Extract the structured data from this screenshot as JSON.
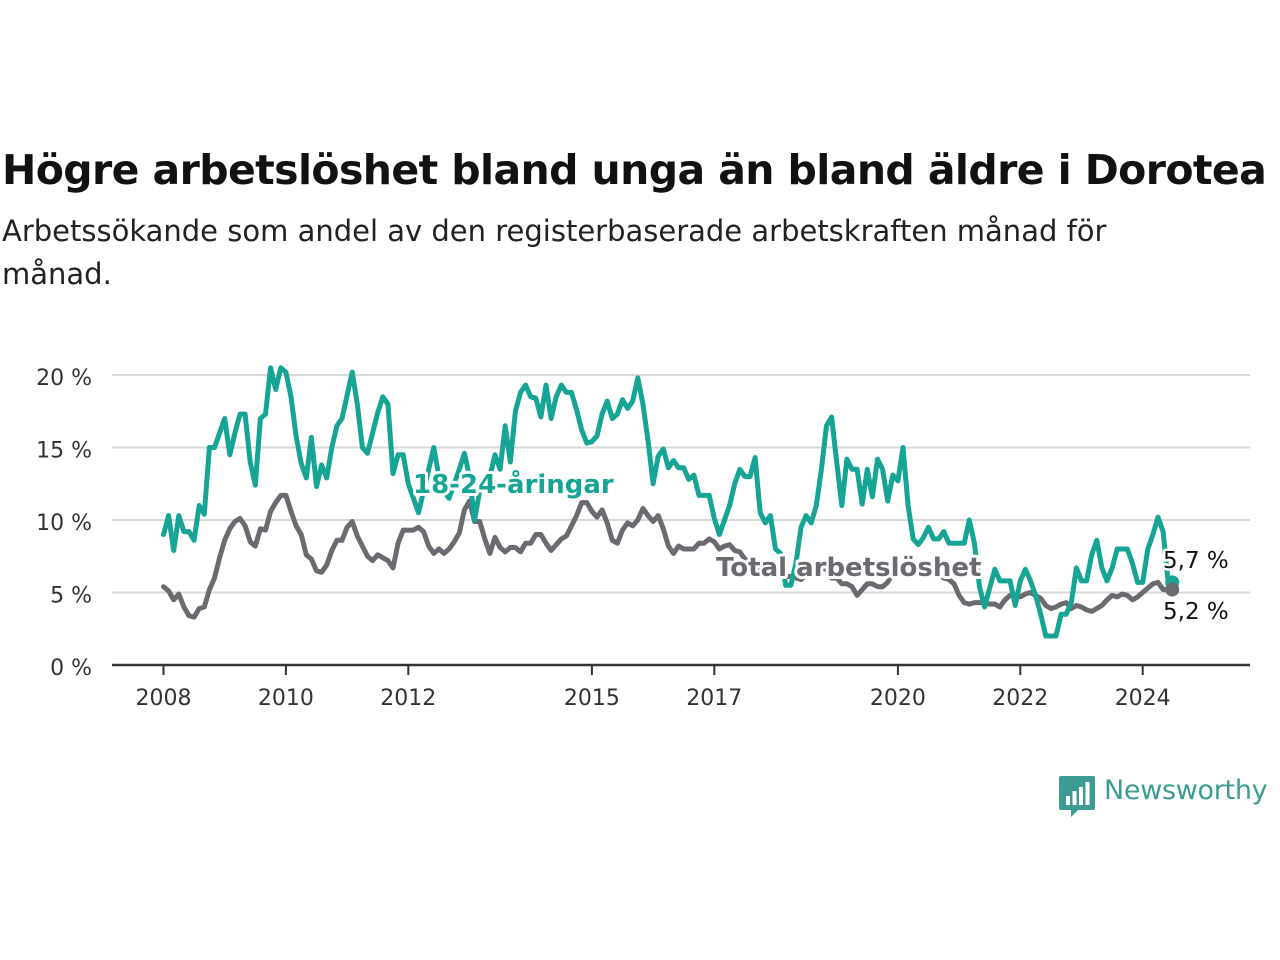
{
  "header": {
    "title": "Högre arbetslöshet bland unga än bland äldre i Dorotea",
    "subtitle": "Arbetssökande som andel av den registerbaserade arbetskraften månad för månad."
  },
  "brand": {
    "name": "Newsworthy",
    "icon": "bar-chart-speech-bubble-icon",
    "color": "#3d9b93"
  },
  "chart_data": {
    "type": "line",
    "x_start": "2008-01",
    "x_frequency": "monthly",
    "xlim": [
      "2008-01",
      "2025-06"
    ],
    "ylim": [
      0,
      21
    ],
    "y_ticks": [
      0,
      5,
      10,
      15,
      20
    ],
    "y_tick_labels": [
      "0 %",
      "5 %",
      "10 %",
      "15 %",
      "20 %"
    ],
    "x_ticks": [
      "2008-01",
      "2010-01",
      "2012-01",
      "2015-01",
      "2017-01",
      "2020-01",
      "2022-01",
      "2024-01"
    ],
    "x_tick_labels": [
      "2008",
      "2010",
      "2012",
      "2015",
      "2017",
      "2020",
      "2022",
      "2024"
    ],
    "grid": true,
    "series": [
      {
        "name": "18-24-åringar",
        "color": "#16a595",
        "end_label": "5,7 %",
        "values": [
          9.0,
          10.3,
          7.9,
          10.3,
          9.2,
          9.2,
          8.6,
          11.0,
          10.4,
          15.0,
          15.0,
          16.0,
          17.0,
          14.5,
          16.0,
          17.3,
          17.3,
          14.0,
          12.4,
          17.0,
          17.3,
          20.5,
          19.0,
          20.5,
          20.2,
          18.5,
          15.8,
          13.9,
          12.9,
          15.7,
          12.3,
          13.8,
          12.9,
          15.0,
          16.5,
          17.0,
          18.6,
          20.2,
          18.0,
          15.0,
          14.6,
          16.0,
          17.4,
          18.5,
          18.0,
          13.2,
          14.5,
          14.5,
          12.5,
          11.5,
          10.5,
          12.0,
          13.5,
          15.0,
          13.0,
          12.0,
          11.5,
          12.5,
          13.5,
          14.6,
          13.0,
          10.0,
          12.0,
          13.0,
          13.0,
          14.5,
          13.5,
          16.5,
          14.0,
          17.5,
          18.8,
          19.3,
          18.5,
          18.4,
          17.1,
          19.3,
          17.0,
          18.5,
          19.3,
          18.8,
          18.8,
          17.6,
          16.2,
          15.3,
          15.4,
          15.8,
          17.3,
          18.2,
          17.0,
          17.3,
          18.3,
          17.7,
          18.2,
          19.8,
          18.0,
          15.5,
          12.5,
          14.4,
          14.9,
          13.6,
          14.1,
          13.6,
          13.6,
          12.8,
          13.1,
          11.7,
          11.7,
          11.7,
          10.1,
          9.0,
          10.0,
          11.0,
          12.5,
          13.5,
          13.0,
          13.0,
          14.3,
          10.5,
          9.8,
          10.3,
          8.0,
          7.7,
          5.5,
          5.5,
          7.0,
          9.5,
          10.3,
          9.8,
          11.0,
          13.5,
          16.5,
          17.1,
          14.0,
          11.0,
          14.2,
          13.5,
          13.5,
          11.1,
          13.5,
          11.6,
          14.2,
          13.5,
          11.3,
          13.1,
          12.7,
          15.0,
          11.0,
          8.7,
          8.3,
          8.8,
          9.5,
          8.7,
          8.7,
          9.2,
          8.4,
          8.4,
          8.4,
          8.4,
          10.0,
          8.4,
          5.4,
          4.0,
          5.3,
          6.6,
          5.8,
          5.8,
          5.8,
          4.1,
          5.8,
          6.6,
          5.8,
          4.8,
          3.5,
          2.0,
          2.0,
          2.0,
          3.5,
          3.5,
          4.3,
          6.7,
          5.8,
          5.8,
          7.6,
          8.6,
          6.7,
          5.8,
          6.7,
          8.0,
          8.0,
          8.0,
          7.0,
          5.7,
          5.7,
          8.0,
          9.0,
          10.2,
          9.2,
          5.7
        ]
      },
      {
        "name": "Total arbetslöshet",
        "color": "#6b6a70",
        "end_label": "5,2 %",
        "values": [
          5.4,
          5.1,
          4.5,
          4.9,
          4.0,
          3.4,
          3.3,
          3.9,
          4.0,
          5.2,
          6.0,
          7.4,
          8.6,
          9.4,
          9.9,
          10.1,
          9.6,
          8.5,
          8.2,
          9.4,
          9.3,
          10.6,
          11.2,
          11.7,
          11.7,
          10.6,
          9.6,
          9.0,
          7.6,
          7.3,
          6.5,
          6.4,
          6.9,
          7.9,
          8.6,
          8.6,
          9.5,
          9.9,
          8.9,
          8.2,
          7.5,
          7.2,
          7.6,
          7.4,
          7.2,
          6.7,
          8.4,
          9.3,
          9.3,
          9.3,
          9.5,
          9.2,
          8.2,
          7.7,
          8.0,
          7.7,
          8.0,
          8.5,
          9.1,
          10.7,
          11.3,
          9.9,
          9.9,
          8.7,
          7.7,
          8.8,
          8.1,
          7.8,
          8.1,
          8.1,
          7.8,
          8.4,
          8.4,
          9.0,
          9.0,
          8.4,
          7.9,
          8.3,
          8.7,
          8.9,
          9.6,
          10.3,
          11.2,
          11.2,
          10.6,
          10.2,
          10.7,
          9.8,
          8.6,
          8.4,
          9.3,
          9.8,
          9.6,
          10.0,
          10.8,
          10.3,
          9.9,
          10.3,
          9.4,
          8.2,
          7.7,
          8.2,
          8.0,
          8.0,
          8.0,
          8.4,
          8.4,
          8.7,
          8.5,
          8.0,
          8.2,
          8.3,
          7.9,
          7.8,
          7.3,
          7.1,
          6.8,
          6.4,
          6.1,
          6.5,
          6.9,
          6.7,
          6.1,
          6.1,
          6.0,
          5.9,
          6.2,
          6.6,
          6.6,
          6.7,
          6.6,
          6.0,
          6.0,
          5.6,
          5.6,
          5.4,
          4.8,
          5.2,
          5.6,
          5.6,
          5.4,
          5.4,
          5.7,
          6.4,
          6.2,
          6.4,
          6.6,
          6.6,
          6.4,
          6.2,
          6.4,
          6.2,
          6.2,
          6.0,
          5.9,
          5.6,
          4.8,
          4.3,
          4.2,
          4.3,
          4.3,
          4.3,
          4.2,
          4.2,
          4.0,
          4.5,
          4.8,
          4.8,
          4.7,
          4.9,
          5.0,
          4.8,
          4.6,
          4.1,
          3.9,
          4.0,
          4.2,
          4.3,
          3.9,
          4.1,
          4.0,
          3.8,
          3.7,
          3.9,
          4.1,
          4.5,
          4.8,
          4.7,
          4.9,
          4.8,
          4.5,
          4.7,
          5.0,
          5.3,
          5.6,
          5.7,
          5.2,
          5.2
        ]
      }
    ],
    "annotations": [
      {
        "text": "18-24-åringar",
        "series": 0,
        "at": "2012-09",
        "value": 12.7
      },
      {
        "text": "Total arbetslöshet",
        "series": 1,
        "at": "2018-03",
        "value": 6.8
      }
    ]
  }
}
